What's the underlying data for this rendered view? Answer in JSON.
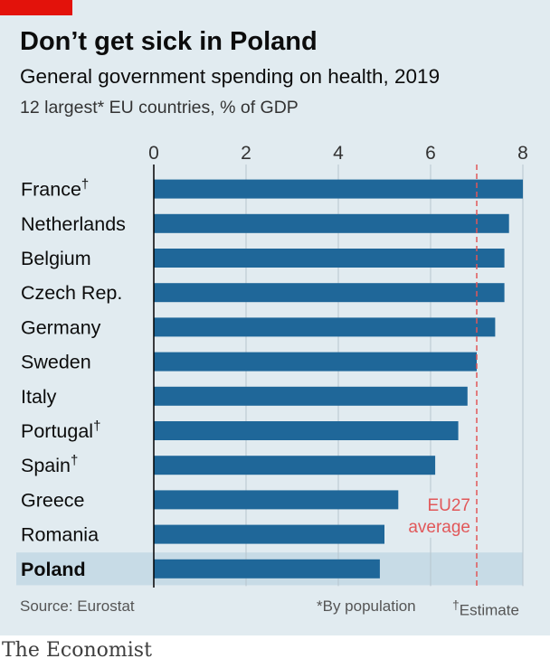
{
  "header": {
    "title": "Don’t get sick in Poland",
    "subtitle": "General government spending on health, 2019",
    "note": "12 largest* EU countries, % of GDP"
  },
  "footer": {
    "source": "Source: Eurostat",
    "footnote_population": "*By population",
    "dagger": "†",
    "footnote_estimate": "Estimate"
  },
  "brand": "The Economist",
  "colors": {
    "bar": "#1f6799",
    "highlight_row": "#c7dbe6",
    "reference_line": "#e15759",
    "red_tag": "#e3120b",
    "background": "#e1ebf0"
  },
  "chart_data": {
    "type": "bar",
    "orientation": "horizontal",
    "categories": [
      "France",
      "Netherlands",
      "Belgium",
      "Czech Rep.",
      "Germany",
      "Sweden",
      "Italy",
      "Portugal",
      "Spain",
      "Greece",
      "Romania",
      "Poland"
    ],
    "estimate_marks": [
      "†",
      "",
      "",
      "",
      "",
      "",
      "",
      "†",
      "†",
      "",
      "",
      ""
    ],
    "highlight": "Poland",
    "values": [
      8.0,
      7.7,
      7.6,
      7.6,
      7.4,
      7.0,
      6.8,
      6.6,
      6.1,
      5.3,
      5.0,
      4.9
    ],
    "xlim": [
      0,
      8
    ],
    "xticks": [
      0,
      2,
      4,
      6,
      8
    ],
    "grid": true,
    "reference_line": {
      "value": 7.0,
      "label_lines": [
        "EU27",
        "average"
      ]
    }
  }
}
